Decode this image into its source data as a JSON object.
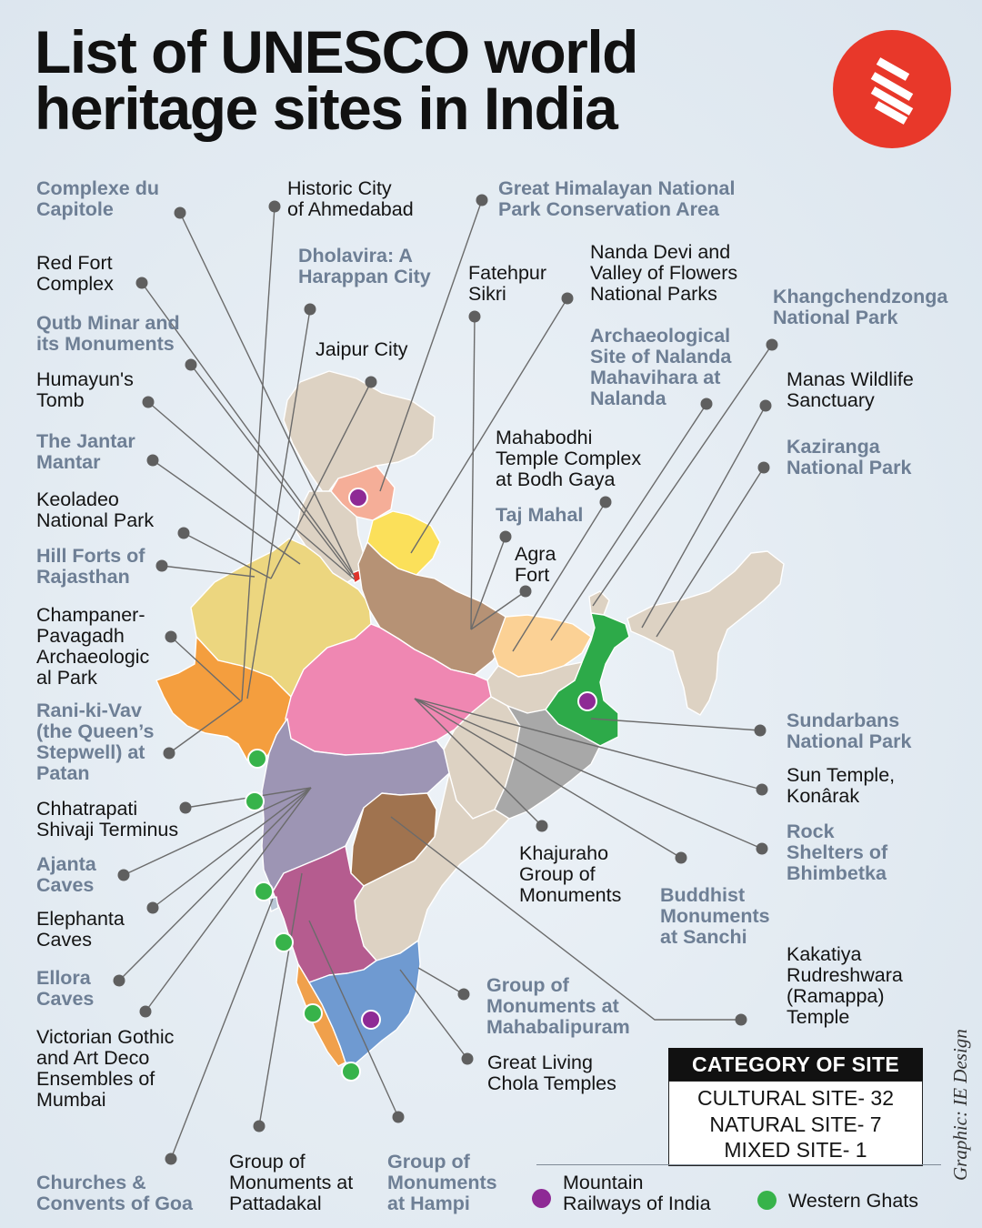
{
  "title": {
    "line1": "List of UNESCO world",
    "line2": "heritage sites in India"
  },
  "brand": {
    "logo_icon": "indian-express-logo",
    "color": "#e8382a"
  },
  "colors": {
    "cultural_label": "#141414",
    "natural_label": "#6e7f95",
    "leader": "#6b6b6b",
    "mountain_railways": "#8e2a95",
    "western_ghats": "#37b34a"
  },
  "sites": {
    "complexe_du_capitole": "Complexe du\nCapitole",
    "historic_city_ahmedabad": "Historic City\nof Ahmedabad",
    "great_himalayan": "Great Himalayan National\nPark Conservation Area",
    "red_fort": "Red Fort\nComplex",
    "dholavira": "Dholavira: A\nHarappan City",
    "fatehpur_sikri": "Fatehpur\nSikri",
    "nanda_devi": "Nanda Devi and\nValley of Flowers\nNational Parks",
    "khangchendzonga": "Khangchendzonga\nNational Park",
    "qutb_minar": "Qutb Minar and\nits Monuments",
    "jaipur_city": "Jaipur City",
    "nalanda": "Archaeological\nSite of Nalanda\nMahavihara at\nNalanda",
    "humayuns_tomb": "Humayun's\nTomb",
    "manas": "Manas Wildlife\nSanctuary",
    "jantar_mantar": "The Jantar\nMantar",
    "mahabodhi": "Mahabodhi\nTemple Complex\nat Bodh Gaya",
    "kaziranga": "Kaziranga\nNational Park",
    "keoladeo": "Keoladeo\nNational Park",
    "taj_mahal": "Taj Mahal",
    "agra_fort": "Agra\nFort",
    "hill_forts": "Hill Forts of\nRajasthan",
    "champaner": "Champaner-\nPavagadh\nArchaeologic\nal Park",
    "rani_ki_vav": "Rani-ki-Vav\n(the Queen’s\nStepwell) at\nPatan",
    "sundarbans": "Sundarbans\nNational Park",
    "sun_temple": "Sun Temple,\nKonârak",
    "chhatrapati": "Chhatrapati\nShivaji Terminus",
    "rock_shelters": "Rock\nShelters of\nBhimbetka",
    "khajuraho": "Khajuraho\nGroup of\nMonuments",
    "ajanta": "Ajanta\nCaves",
    "buddhist_sanchi": "Buddhist\nMonuments\nat Sanchi",
    "elephanta": "Elephanta\nCaves",
    "kakatiya": "Kakatiya\nRudreshwara\n(Ramappa)\nTemple",
    "ellora": "Ellora\nCaves",
    "mahabalipuram": "Group of\nMonuments at\nMahabalipuram",
    "victorian_gothic": "Victorian Gothic\nand Art Deco\nEnsembles of\nMumbai",
    "chola_temples": "Great Living\nChola Temples",
    "churches_goa": "Churches &\nConvents of Goa",
    "pattadakal": "Group of\nMonuments at\nPattadakal",
    "hampi": "Group of\nMonuments\nat Hampi"
  },
  "category": {
    "heading": "CATEGORY OF SITE",
    "cultural": "CULTURAL SITE- 32",
    "natural": "NATURAL SITE- 7",
    "mixed": "MIXED SITE- 1"
  },
  "legend": {
    "mountain_railways": "Mountain\nRailways of India",
    "western_ghats": "Western Ghats"
  },
  "credit": "Graphic: IE Design"
}
